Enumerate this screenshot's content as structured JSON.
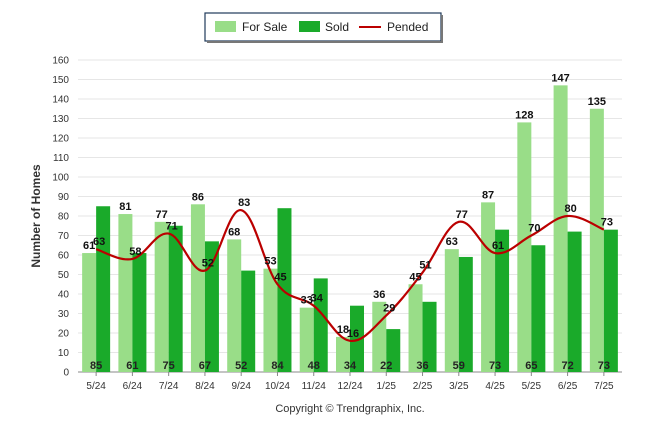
{
  "chart_data": {
    "type": "bar",
    "categories": [
      "5/24",
      "6/24",
      "7/24",
      "8/24",
      "9/24",
      "10/24",
      "11/24",
      "12/24",
      "1/25",
      "2/25",
      "3/25",
      "4/25",
      "5/25",
      "6/25",
      "7/25"
    ],
    "series": [
      {
        "name": "For Sale",
        "type": "bar",
        "color": "#99dd88",
        "values": [
          61,
          81,
          77,
          86,
          68,
          53,
          33,
          18,
          36,
          45,
          63,
          87,
          128,
          147,
          135
        ]
      },
      {
        "name": "Sold",
        "type": "bar",
        "color": "#1aaa2a",
        "values": [
          85,
          61,
          75,
          67,
          52,
          84,
          48,
          34,
          22,
          36,
          59,
          73,
          65,
          72,
          73
        ]
      },
      {
        "name": "Pended",
        "type": "line",
        "color": "#bb0000",
        "values": [
          63,
          58,
          71,
          52,
          83,
          45,
          34,
          16,
          29,
          51,
          77,
          61,
          70,
          80,
          73
        ]
      }
    ],
    "ylabel": "Number of Homes",
    "ylim": [
      0,
      160
    ],
    "yticks": [
      0,
      10,
      20,
      30,
      40,
      50,
      60,
      70,
      80,
      90,
      100,
      110,
      120,
      130,
      140,
      150,
      160
    ],
    "grid": true,
    "legend_position": "top-center",
    "footer": "Copyright © Trendgraphix, Inc."
  }
}
